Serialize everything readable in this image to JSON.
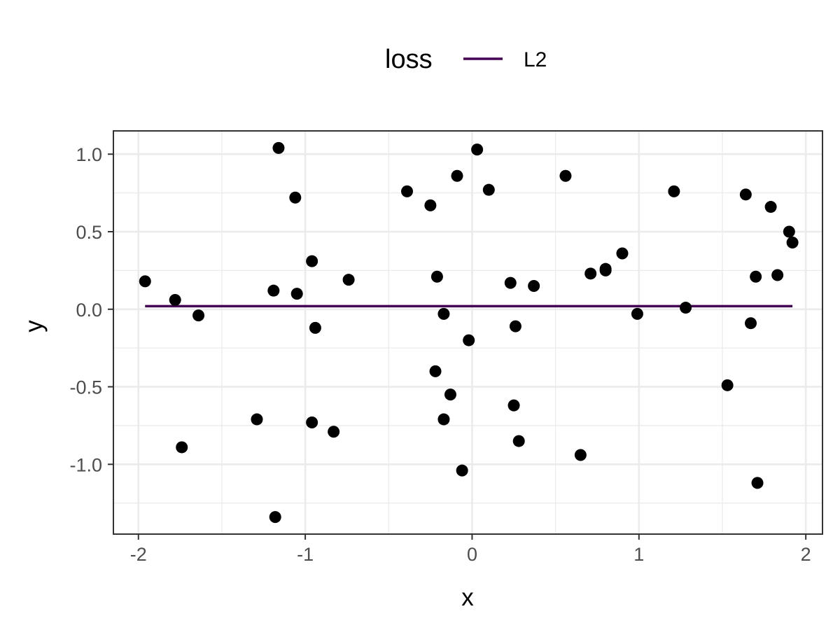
{
  "chart_data": {
    "type": "scatter",
    "title": "",
    "xlabel": "x",
    "ylabel": "y",
    "xlim": [
      -2.15,
      2.1
    ],
    "ylim": [
      -1.45,
      1.15
    ],
    "x_ticks": [
      -2,
      -1,
      0,
      1,
      2
    ],
    "x_tick_labels": [
      "-2",
      "-1",
      "0",
      "1",
      "2"
    ],
    "y_ticks": [
      -1.0,
      -0.5,
      0.0,
      0.5,
      1.0
    ],
    "y_tick_labels": [
      "-1.0",
      "-0.5",
      "0.0",
      "0.5",
      "1.0"
    ],
    "grid": true,
    "legend": {
      "title": "loss",
      "position": "top",
      "entries": [
        {
          "label": "L2",
          "color": "#440154"
        }
      ]
    },
    "points": {
      "color": "#000000",
      "x": [
        -1.96,
        -1.78,
        -1.64,
        -1.74,
        -1.29,
        -1.19,
        -1.18,
        -1.16,
        -1.06,
        -1.05,
        -0.96,
        -0.96,
        -0.94,
        -0.83,
        -0.74,
        -0.39,
        -0.25,
        -0.22,
        -0.21,
        -0.17,
        -0.17,
        -0.13,
        -0.09,
        -0.06,
        -0.02,
        0.03,
        0.1,
        0.23,
        0.25,
        0.26,
        0.28,
        0.37,
        0.56,
        0.65,
        0.71,
        0.8,
        0.8,
        0.9,
        0.99,
        1.21,
        1.28,
        1.53,
        1.64,
        1.67,
        1.7,
        1.71,
        1.79,
        1.83,
        1.9,
        1.92
      ],
      "y": [
        0.18,
        0.06,
        -0.04,
        -0.89,
        -0.71,
        0.12,
        -1.34,
        1.04,
        0.72,
        0.1,
        0.31,
        -0.73,
        -0.12,
        -0.79,
        0.19,
        0.76,
        0.67,
        -0.4,
        0.21,
        -0.03,
        -0.71,
        -0.55,
        0.86,
        -1.04,
        -0.2,
        1.03,
        0.77,
        0.17,
        -0.62,
        -0.11,
        -0.85,
        0.15,
        0.86,
        -0.94,
        0.23,
        0.26,
        0.25,
        0.36,
        -0.03,
        0.76,
        0.01,
        -0.49,
        0.74,
        -0.09,
        0.21,
        -1.12,
        0.66,
        0.22,
        0.5,
        0.43
      ]
    },
    "series": [
      {
        "name": "L2",
        "color": "#440154",
        "x": [
          -1.96,
          1.92
        ],
        "y": [
          0.02,
          0.02
        ]
      }
    ]
  }
}
